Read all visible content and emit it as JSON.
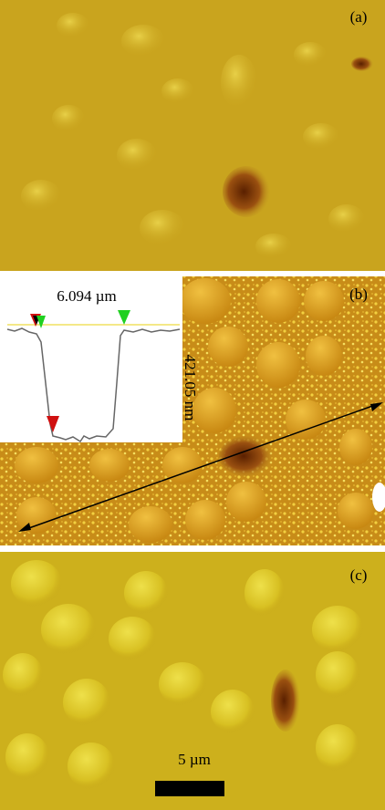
{
  "panels": [
    {
      "label": "(a)"
    },
    {
      "label": "(b)",
      "profile_width": "6.094 µm",
      "profile_depth": "421.05 nm"
    },
    {
      "label": "(c)",
      "scale_bar": "5 µm"
    }
  ]
}
